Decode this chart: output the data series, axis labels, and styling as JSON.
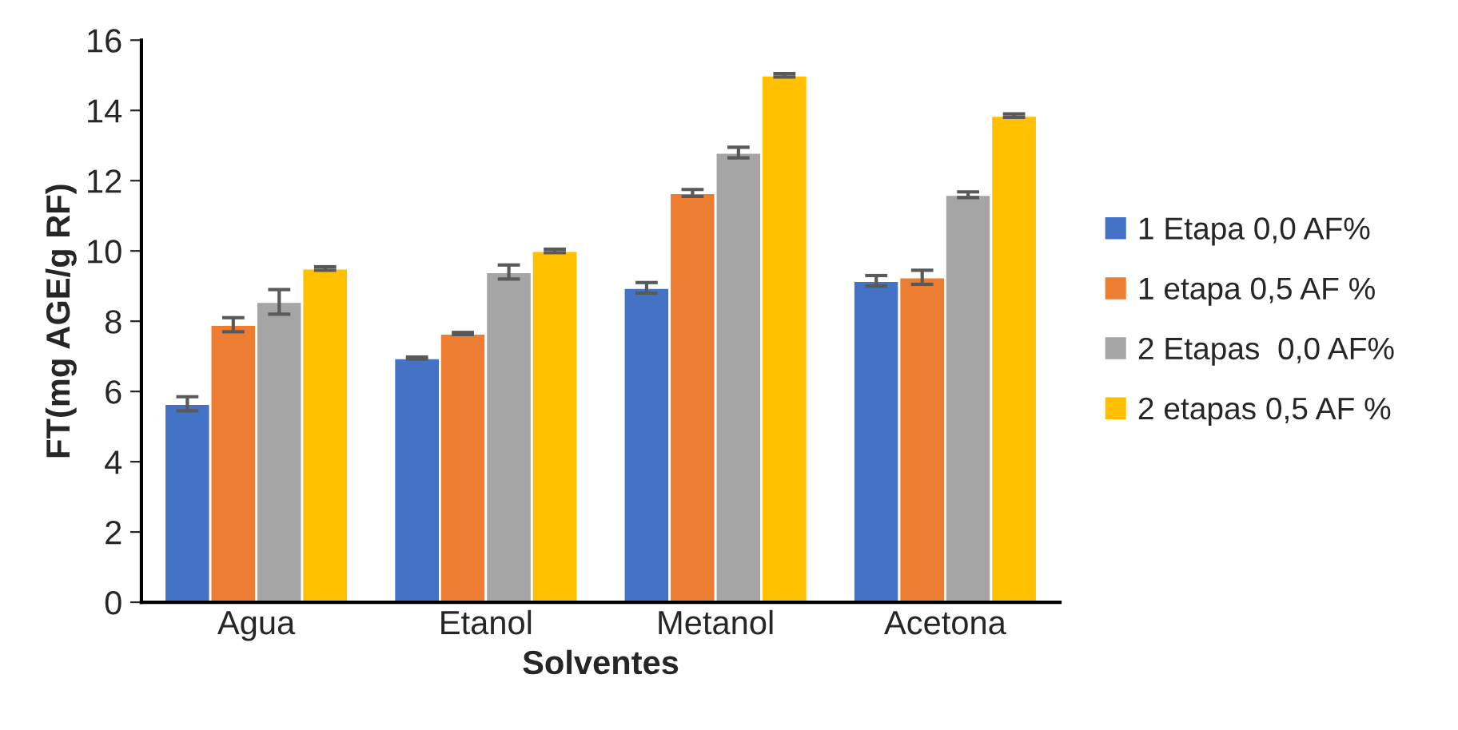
{
  "chart_data": {
    "type": "bar",
    "xlabel": "Solventes",
    "ylabel": "FT(mg AGE/g RF)",
    "categories": [
      "Agua",
      "Etanol",
      "Metanol",
      "Acetona"
    ],
    "series": [
      {
        "name": "1 Etapa 0,0 AF%",
        "color": "#4472c4",
        "values": [
          5.65,
          6.95,
          8.95,
          9.15
        ],
        "errors": [
          0.2,
          0.03,
          0.15,
          0.15
        ]
      },
      {
        "name": "1 etapa 0,5 AF %",
        "color": "#ed7d31",
        "values": [
          7.9,
          7.65,
          11.65,
          9.25
        ],
        "errors": [
          0.2,
          0.03,
          0.1,
          0.2
        ]
      },
      {
        "name": "2 Etapas  0,0 AF%",
        "color": "#a5a5a5",
        "values": [
          8.55,
          9.4,
          12.8,
          11.6
        ],
        "errors": [
          0.35,
          0.2,
          0.15,
          0.08
        ]
      },
      {
        "name": "2 etapas 0,5 AF %",
        "color": "#ffc000",
        "values": [
          9.5,
          10.0,
          15.0,
          13.85
        ],
        "errors": [
          0.05,
          0.05,
          0.05,
          0.05
        ]
      }
    ],
    "ylim": [
      0,
      16
    ],
    "yticks": [
      0,
      2,
      4,
      6,
      8,
      10,
      12,
      14,
      16
    ],
    "grid": false,
    "legend": "right"
  }
}
